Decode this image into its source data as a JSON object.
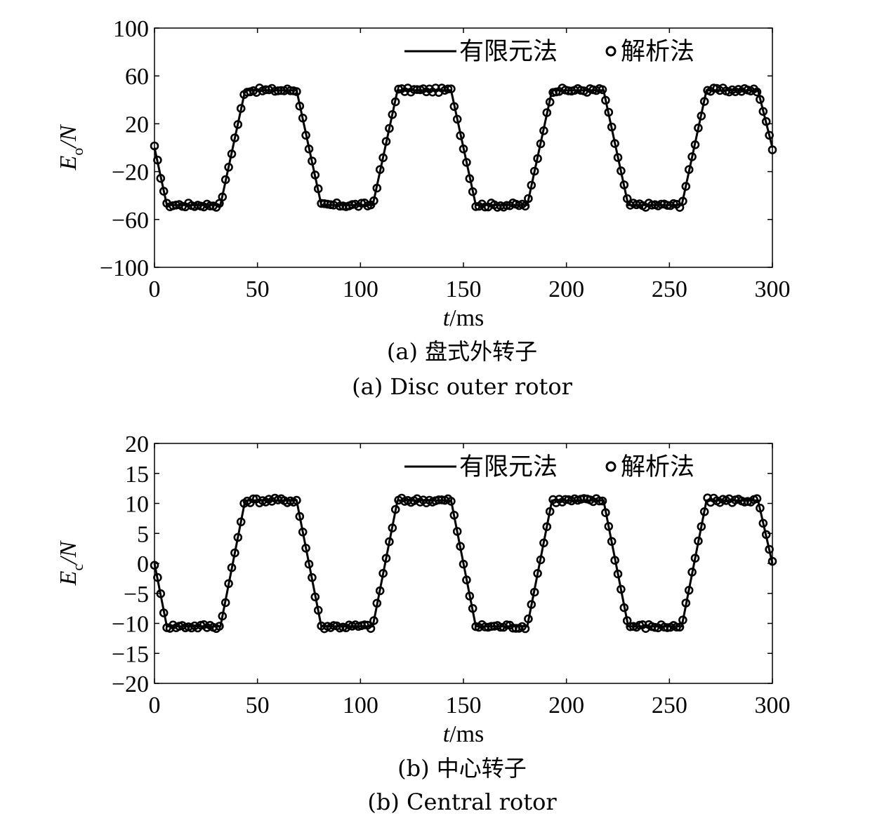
{
  "chart_data": [
    {
      "type": "line",
      "xlabel": {
        "var": "t",
        "unit": "/ms"
      },
      "ylabel": {
        "var": "E",
        "sub": "o",
        "unit": "/N"
      },
      "xlim": [
        0,
        300
      ],
      "ylim": [
        -100,
        100
      ],
      "xticks": [
        "0",
        "50",
        "100",
        "150",
        "200",
        "250",
        "300"
      ],
      "yticks": [
        "100",
        "60",
        "20",
        "−20",
        "−60",
        "−100"
      ],
      "ytick_values": [
        100,
        60,
        20,
        -20,
        -60,
        -100
      ],
      "caption_cn": "(a) 盘式外转子",
      "caption_en": "(a) Disc outer rotor",
      "legend_position": "top-right",
      "series": [
        {
          "name": "有限元法",
          "style": "line"
        },
        {
          "name": "解析法",
          "style": "circle-markers"
        }
      ],
      "waveform": {
        "x": [
          0,
          6,
          32,
          44,
          69,
          81,
          106,
          118,
          144,
          156,
          181,
          193,
          218,
          230,
          256,
          268,
          293,
          300
        ],
        "y": [
          0,
          -48,
          -48,
          48,
          48,
          -48,
          -48,
          48,
          48,
          -48,
          -48,
          48,
          48,
          -48,
          -48,
          48,
          48,
          0
        ]
      },
      "grid": false
    },
    {
      "type": "line",
      "xlabel": {
        "var": "t",
        "unit": "/ms"
      },
      "ylabel": {
        "var": "E",
        "sub": "c",
        "unit": "/N"
      },
      "xlim": [
        0,
        300
      ],
      "ylim": [
        -20,
        20
      ],
      "xticks": [
        "0",
        "50",
        "100",
        "150",
        "200",
        "250",
        "300"
      ],
      "yticks": [
        "20",
        "15",
        "10",
        "5",
        "0",
        "−5",
        "−10",
        "−15",
        "−20"
      ],
      "ytick_values": [
        20,
        15,
        10,
        5,
        0,
        -5,
        -10,
        -15,
        -20
      ],
      "caption_cn": "(b) 中心转子",
      "caption_en": "(b) Central rotor",
      "legend_position": "top-right",
      "series": [
        {
          "name": "有限元法",
          "style": "line"
        },
        {
          "name": "解析法",
          "style": "circle-markers"
        }
      ],
      "waveform": {
        "x": [
          0,
          6,
          32,
          44,
          69,
          81,
          106,
          118,
          144,
          156,
          181,
          193,
          218,
          230,
          256,
          268,
          293,
          300
        ],
        "y": [
          0,
          -10.5,
          -10.5,
          10.5,
          10.5,
          -10.5,
          -10.5,
          10.5,
          10.5,
          -10.5,
          -10.5,
          10.5,
          10.5,
          -10.5,
          -10.5,
          10.5,
          10.5,
          0
        ]
      },
      "grid": false
    }
  ]
}
